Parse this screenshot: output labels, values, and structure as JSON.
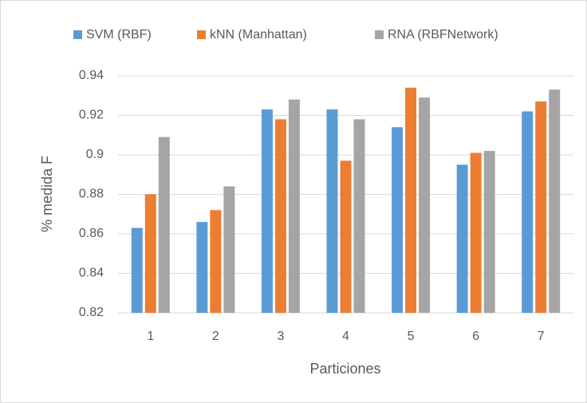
{
  "chart_data": {
    "type": "bar",
    "categories": [
      "1",
      "2",
      "3",
      "4",
      "5",
      "6",
      "7"
    ],
    "series": [
      {
        "name": "SVM (RBF)",
        "color": "#5b9bd5",
        "values": [
          0.863,
          0.866,
          0.923,
          0.923,
          0.914,
          0.895,
          0.922
        ]
      },
      {
        "name": "kNN (Manhattan)",
        "color": "#ed7d31",
        "values": [
          0.88,
          0.872,
          0.918,
          0.897,
          0.934,
          0.901,
          0.927
        ]
      },
      {
        "name": "RNA (RBFNetwork)",
        "color": "#a5a5a5",
        "values": [
          0.909,
          0.884,
          0.928,
          0.918,
          0.929,
          0.902,
          0.933
        ]
      }
    ],
    "ylabel": "% medida F",
    "xlabel": "Particiones",
    "ylim": [
      0.82,
      0.94
    ],
    "yticks": [
      0.82,
      0.84,
      0.86,
      0.88,
      0.9,
      0.92,
      0.94
    ],
    "grid": true,
    "legend": "top"
  }
}
